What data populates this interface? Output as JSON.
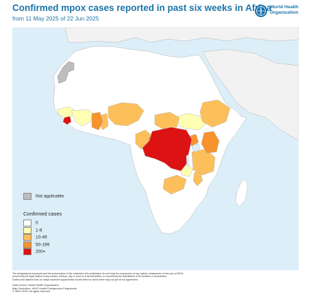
{
  "header": {
    "title": "Confirmed mpox cases reported in past six weeks in Africa",
    "subtitle": "from 11 May 2025 of 22 Jun 2025",
    "logo_line1": "World Health",
    "logo_line2": "Organization"
  },
  "legend": {
    "not_applicable_label": "Not applicable",
    "title": "Confirmed cases",
    "items": [
      {
        "label": "0",
        "color": "#ffffff"
      },
      {
        "label": "1-9",
        "color": "#ffffb3"
      },
      {
        "label": "10-49",
        "color": "#fdbf5a"
      },
      {
        "label": "50-199",
        "color": "#f7922d"
      },
      {
        "label": "200+",
        "color": "#dd1212"
      }
    ]
  },
  "colors": {
    "ocean": "#dceef8",
    "land_other": "#f2f2f2",
    "not_applicable": "#bdbdbd",
    "border": "#b5b5b5",
    "title": "#1a73a8"
  },
  "disclaimer": {
    "line1": "The designations employed and the presentation of the material in this publication do not imply the expression of any opinion whatsoever on the part of WHO",
    "line2": "concerning the legal status of any country, territory, city or area or of its authorities, or concerning the delimitation of its frontiers or boundaries.",
    "line3": "Dotted and dashed lines on maps represent approximate border lines for which there may not yet be full agreement."
  },
  "footer": {
    "data_source": "Data Source: World Health Organization",
    "map_production": "Map Production: WHO Health Emergencies Programme",
    "copyright": "© WHO 2025. All rights reserved"
  }
}
